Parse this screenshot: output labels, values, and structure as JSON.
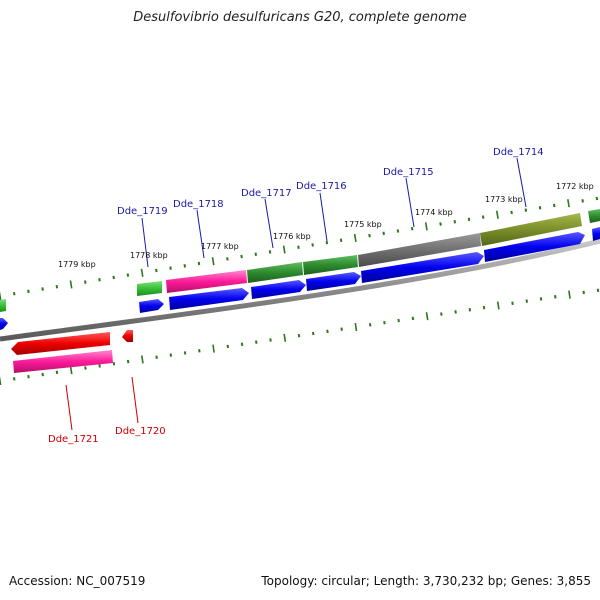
{
  "title": "Desulfovibrio desulfuricans G20, complete genome",
  "footer": {
    "accession": "Accession: NC_007519",
    "topology": "Topology: circular; Length: 3,730,232 bp; Genes: 3,855"
  },
  "colors": {
    "forward_cds": "#0000ee",
    "reverse_cds": "#ee0000",
    "gene_label_forward": "#1a1aa6",
    "gene_label_reverse": "#cc0000",
    "backbone": "#888888",
    "tick": "#2a7a1a"
  },
  "ticks": [
    "1779 kbp",
    "1778 kbp",
    "1777 kbp",
    "1776 kbp",
    "1775 kbp",
    "1774 kbp",
    "1773 kbp",
    "1772 kbp"
  ],
  "gene_labels": [
    {
      "name": "Dde_1719",
      "strand": "forward"
    },
    {
      "name": "Dde_1718",
      "strand": "forward"
    },
    {
      "name": "Dde_1717",
      "strand": "forward"
    },
    {
      "name": "Dde_1716",
      "strand": "forward"
    },
    {
      "name": "Dde_1715",
      "strand": "forward"
    },
    {
      "name": "Dde_1714",
      "strand": "forward"
    },
    {
      "name": "Dde_1721",
      "strand": "reverse"
    },
    {
      "name": "Dde_1720",
      "strand": "reverse"
    }
  ]
}
